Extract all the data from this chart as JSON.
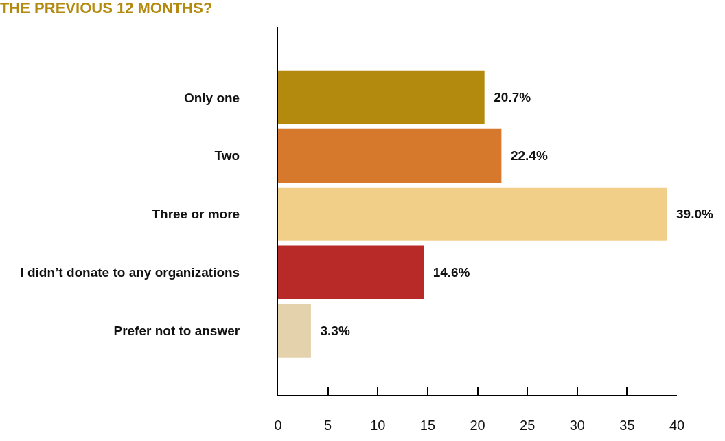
{
  "chart_data": {
    "type": "bar",
    "orientation": "horizontal",
    "title": "THE PREVIOUS 12 MONTHS?",
    "categories": [
      "Only one",
      "Two",
      "Three or more",
      "I didn’t donate to any organizations",
      "Prefer not to answer"
    ],
    "values": [
      20.7,
      22.4,
      39.0,
      14.6,
      3.3
    ],
    "colors": [
      "#b38a0e",
      "#d6792c",
      "#f2cf88",
      "#b82a27",
      "#e3d2ac"
    ],
    "value_labels": [
      "20.7%",
      "22.4%",
      "39.0%",
      "14.6%",
      "3.3%"
    ],
    "xlim": [
      0,
      40
    ],
    "xticks": [
      0,
      5,
      10,
      15,
      20,
      25,
      30,
      35,
      40
    ]
  }
}
